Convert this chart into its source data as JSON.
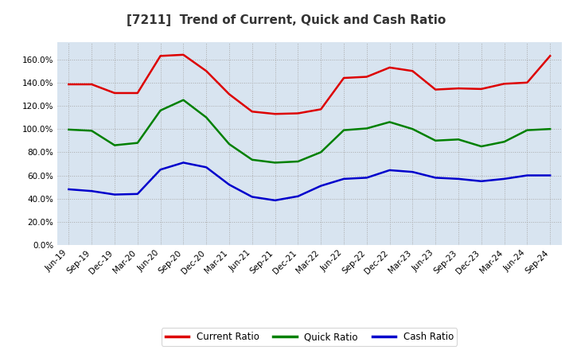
{
  "title": "[7211]  Trend of Current, Quick and Cash Ratio",
  "labels": [
    "Jun-19",
    "Sep-19",
    "Dec-19",
    "Mar-20",
    "Jun-20",
    "Sep-20",
    "Dec-20",
    "Mar-21",
    "Jun-21",
    "Sep-21",
    "Dec-21",
    "Mar-22",
    "Jun-22",
    "Sep-22",
    "Dec-22",
    "Mar-23",
    "Jun-23",
    "Sep-23",
    "Dec-23",
    "Mar-24",
    "Jun-24",
    "Sep-24"
  ],
  "current_ratio": [
    138.5,
    138.5,
    131.0,
    131.0,
    163.0,
    164.0,
    150.0,
    130.0,
    115.0,
    113.0,
    113.5,
    117.0,
    144.0,
    145.0,
    153.0,
    150.0,
    134.0,
    135.0,
    134.5,
    139.0,
    140.0,
    163.0
  ],
  "quick_ratio": [
    99.5,
    98.5,
    86.0,
    88.0,
    116.0,
    125.0,
    110.0,
    87.0,
    73.5,
    71.0,
    72.0,
    80.0,
    99.0,
    100.5,
    106.0,
    100.0,
    90.0,
    91.0,
    85.0,
    89.0,
    99.0,
    100.0
  ],
  "cash_ratio": [
    48.0,
    46.5,
    43.5,
    44.0,
    65.0,
    71.0,
    67.0,
    52.0,
    41.5,
    38.5,
    42.0,
    51.0,
    57.0,
    58.0,
    64.5,
    63.0,
    58.0,
    57.0,
    55.0,
    57.0,
    60.0,
    60.0
  ],
  "current_color": "#dd0000",
  "quick_color": "#008000",
  "cash_color": "#0000cc",
  "fig_background": "#ffffff",
  "plot_bg_color": "#d8e4f0",
  "ylim": [
    0,
    175
  ],
  "yticks": [
    0,
    20,
    40,
    60,
    80,
    100,
    120,
    140,
    160
  ],
  "legend_labels": [
    "Current Ratio",
    "Quick Ratio",
    "Cash Ratio"
  ],
  "line_width": 1.8,
  "title_fontsize": 11,
  "tick_fontsize": 7.5
}
